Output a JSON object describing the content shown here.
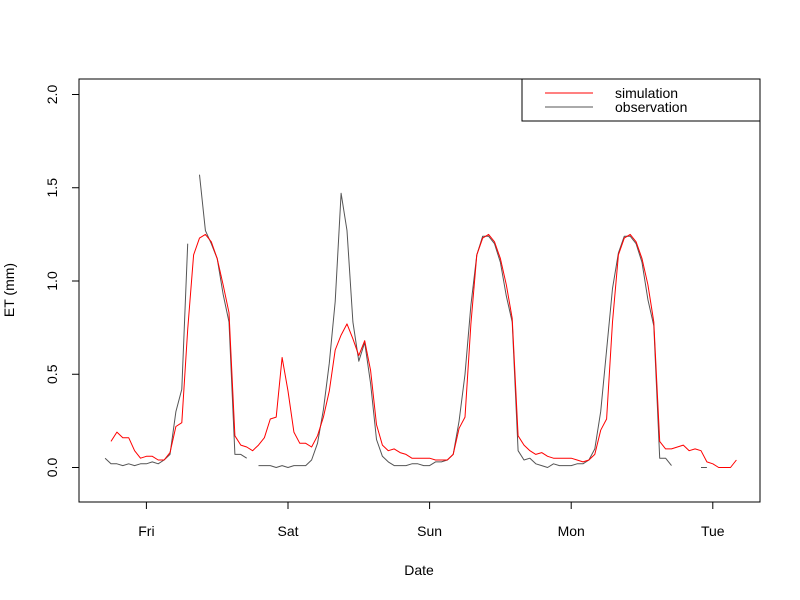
{
  "chart_data": {
    "type": "line",
    "title": "",
    "xlabel": "Date",
    "ylabel": "ET (mm)",
    "ylim": [
      -0.19,
      2.08
    ],
    "x_tick_labels": [
      "Fri",
      "Sat",
      "Sun",
      "Mon",
      "Tue"
    ],
    "y_tick_labels": [
      "0.0",
      "0.5",
      "1.0",
      "1.5",
      "2.0"
    ],
    "y_ticks": [
      0.0,
      0.5,
      1.0,
      1.5,
      2.0
    ],
    "x_unit": "hours from first sample (3-hourly, days labeled at midnight)",
    "legend": {
      "position": "top-right",
      "box": true
    },
    "series": [
      {
        "name": "simulation",
        "color": "#ff0000",
        "points": [
          [
            0,
            0.14
          ],
          [
            3,
            0.19
          ],
          [
            6,
            0.16
          ],
          [
            9,
            0.16
          ],
          [
            12,
            0.09
          ],
          [
            15,
            0.05
          ],
          [
            18,
            0.06
          ],
          [
            21,
            0.06
          ],
          [
            24,
            0.04
          ],
          [
            27,
            0.04
          ],
          [
            30,
            0.08
          ],
          [
            33,
            0.22
          ],
          [
            36,
            0.24
          ],
          [
            39,
            0.74
          ],
          [
            42,
            1.14
          ],
          [
            45,
            1.23
          ],
          [
            48,
            1.25
          ],
          [
            51,
            1.21
          ],
          [
            54,
            1.12
          ],
          [
            57,
            0.98
          ],
          [
            60,
            0.83
          ],
          [
            63,
            0.17
          ],
          [
            66,
            0.12
          ],
          [
            69,
            0.11
          ],
          [
            72,
            0.09
          ],
          [
            75,
            0.12
          ],
          [
            78,
            0.16
          ],
          [
            81,
            0.26
          ],
          [
            84,
            0.27
          ],
          [
            87,
            0.59
          ],
          [
            90,
            0.41
          ],
          [
            93,
            0.19
          ],
          [
            96,
            0.13
          ],
          [
            99,
            0.13
          ],
          [
            102,
            0.11
          ],
          [
            105,
            0.17
          ],
          [
            108,
            0.27
          ],
          [
            111,
            0.41
          ],
          [
            114,
            0.63
          ],
          [
            117,
            0.71
          ],
          [
            120,
            0.77
          ],
          [
            123,
            0.69
          ],
          [
            126,
            0.6
          ],
          [
            129,
            0.68
          ],
          [
            132,
            0.52
          ],
          [
            135,
            0.23
          ],
          [
            138,
            0.12
          ],
          [
            141,
            0.09
          ],
          [
            144,
            0.1
          ],
          [
            147,
            0.08
          ],
          [
            150,
            0.07
          ],
          [
            153,
            0.05
          ],
          [
            156,
            0.05
          ],
          [
            159,
            0.05
          ],
          [
            162,
            0.05
          ],
          [
            165,
            0.04
          ],
          [
            168,
            0.04
          ],
          [
            171,
            0.04
          ],
          [
            174,
            0.07
          ],
          [
            177,
            0.21
          ],
          [
            180,
            0.27
          ],
          [
            183,
            0.77
          ],
          [
            186,
            1.14
          ],
          [
            189,
            1.23
          ],
          [
            192,
            1.25
          ],
          [
            195,
            1.21
          ],
          [
            198,
            1.12
          ],
          [
            201,
            0.98
          ],
          [
            204,
            0.8
          ],
          [
            207,
            0.17
          ],
          [
            210,
            0.12
          ],
          [
            213,
            0.09
          ],
          [
            216,
            0.07
          ],
          [
            219,
            0.08
          ],
          [
            222,
            0.06
          ],
          [
            225,
            0.05
          ],
          [
            228,
            0.05
          ],
          [
            231,
            0.05
          ],
          [
            234,
            0.05
          ],
          [
            237,
            0.04
          ],
          [
            240,
            0.03
          ],
          [
            243,
            0.04
          ],
          [
            246,
            0.07
          ],
          [
            249,
            0.2
          ],
          [
            252,
            0.26
          ],
          [
            255,
            0.78
          ],
          [
            258,
            1.14
          ],
          [
            261,
            1.23
          ],
          [
            264,
            1.25
          ],
          [
            267,
            1.21
          ],
          [
            270,
            1.12
          ],
          [
            273,
            0.98
          ],
          [
            276,
            0.78
          ],
          [
            279,
            0.14
          ],
          [
            282,
            0.1
          ],
          [
            285,
            0.1
          ],
          [
            288,
            0.11
          ],
          [
            291,
            0.12
          ],
          [
            294,
            0.09
          ],
          [
            297,
            0.1
          ],
          [
            300,
            0.09
          ],
          [
            303,
            0.03
          ],
          [
            306,
            0.02
          ],
          [
            309,
            0.0
          ],
          [
            312,
            0.0
          ],
          [
            315,
            0.0
          ],
          [
            318,
            0.04
          ]
        ]
      },
      {
        "name": "observation",
        "color": "#555555",
        "segments": [
          [
            [
              -3,
              0.05
            ],
            [
              0,
              0.02
            ],
            [
              3,
              0.02
            ],
            [
              6,
              0.01
            ],
            [
              9,
              0.02
            ],
            [
              12,
              0.01
            ],
            [
              15,
              0.02
            ],
            [
              18,
              0.02
            ],
            [
              21,
              0.03
            ],
            [
              24,
              0.02
            ],
            [
              27,
              0.04
            ],
            [
              30,
              0.07
            ],
            [
              33,
              0.3
            ],
            [
              36,
              0.42
            ],
            [
              39,
              1.2
            ]
          ],
          [
            [
              45,
              1.57
            ],
            [
              48,
              1.27
            ],
            [
              51,
              1.2
            ],
            [
              54,
              1.12
            ],
            [
              57,
              0.93
            ],
            [
              60,
              0.78
            ],
            [
              63,
              0.07
            ],
            [
              66,
              0.07
            ],
            [
              69,
              0.05
            ]
          ],
          [
            [
              75,
              0.01
            ],
            [
              78,
              0.01
            ],
            [
              81,
              0.01
            ],
            [
              84,
              0.0
            ],
            [
              87,
              0.01
            ],
            [
              90,
              0.0
            ],
            [
              93,
              0.01
            ],
            [
              96,
              0.01
            ],
            [
              99,
              0.01
            ],
            [
              102,
              0.04
            ],
            [
              105,
              0.13
            ],
            [
              108,
              0.31
            ],
            [
              111,
              0.56
            ],
            [
              114,
              0.89
            ],
            [
              117,
              1.47
            ],
            [
              120,
              1.27
            ],
            [
              123,
              0.78
            ],
            [
              126,
              0.57
            ],
            [
              129,
              0.67
            ],
            [
              132,
              0.45
            ],
            [
              135,
              0.15
            ],
            [
              138,
              0.06
            ],
            [
              141,
              0.03
            ],
            [
              144,
              0.01
            ],
            [
              147,
              0.01
            ],
            [
              150,
              0.01
            ],
            [
              153,
              0.02
            ],
            [
              156,
              0.02
            ],
            [
              159,
              0.01
            ],
            [
              162,
              0.01
            ],
            [
              165,
              0.03
            ],
            [
              168,
              0.03
            ],
            [
              171,
              0.04
            ],
            [
              174,
              0.07
            ],
            [
              177,
              0.25
            ],
            [
              180,
              0.5
            ],
            [
              183,
              0.87
            ],
            [
              186,
              1.14
            ],
            [
              189,
              1.24
            ],
            [
              192,
              1.24
            ],
            [
              195,
              1.2
            ],
            [
              198,
              1.1
            ],
            [
              201,
              0.92
            ],
            [
              204,
              0.78
            ],
            [
              207,
              0.09
            ],
            [
              210,
              0.04
            ],
            [
              213,
              0.05
            ],
            [
              216,
              0.02
            ],
            [
              219,
              0.01
            ],
            [
              222,
              0.0
            ],
            [
              225,
              0.02
            ],
            [
              228,
              0.01
            ],
            [
              231,
              0.01
            ],
            [
              234,
              0.01
            ],
            [
              237,
              0.02
            ],
            [
              240,
              0.02
            ],
            [
              243,
              0.04
            ],
            [
              246,
              0.1
            ],
            [
              249,
              0.3
            ],
            [
              252,
              0.63
            ],
            [
              255,
              0.96
            ],
            [
              258,
              1.15
            ],
            [
              261,
              1.24
            ],
            [
              264,
              1.24
            ],
            [
              267,
              1.2
            ],
            [
              270,
              1.1
            ],
            [
              273,
              0.9
            ],
            [
              276,
              0.76
            ],
            [
              279,
              0.05
            ],
            [
              282,
              0.05
            ],
            [
              285,
              0.01
            ]
          ],
          [
            [
              300,
              0.0
            ],
            [
              303,
              0.0
            ]
          ]
        ]
      }
    ]
  }
}
